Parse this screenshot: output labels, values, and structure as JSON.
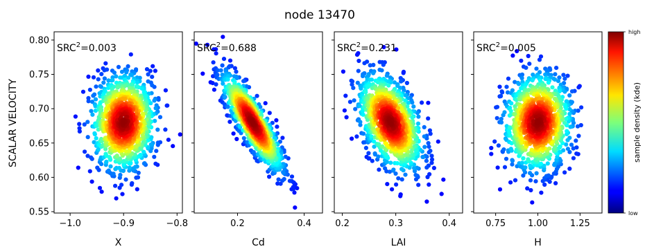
{
  "figure": {
    "title": "node 13470",
    "ylabel": "SCALAR VELOCITY",
    "colorbar_label": "sample density (kde)",
    "colorbar_high": "high",
    "colorbar_low": "low"
  },
  "chart_data": [
    {
      "type": "scatter",
      "xlabel": "X",
      "annotation": "SRC",
      "annotation_sup": "2",
      "annotation_value": "=0.003",
      "src2": 0.003,
      "xlim": [
        -1.03,
        -0.79
      ],
      "ylim": [
        0.548,
        0.812
      ],
      "xticks": [
        -1.0,
        -0.9,
        -0.8
      ],
      "xtick_labels": [
        "−1.0",
        "−0.9",
        "−0.8"
      ],
      "yticks": [
        0.55,
        0.6,
        0.65,
        0.7,
        0.75,
        0.8
      ],
      "ytick_labels": [
        "0.55",
        "0.60",
        "0.65",
        "0.70",
        "0.75",
        "0.80"
      ],
      "x_center": -0.9,
      "x_sd": 0.03,
      "y_center": 0.68,
      "y_sd": 0.035,
      "correlation": 0.05
    },
    {
      "type": "scatter",
      "xlabel": "Cd",
      "annotation": "SRC",
      "annotation_sup": "2",
      "annotation_value": "=0.688",
      "src2": 0.688,
      "xlim": [
        0.07,
        0.455
      ],
      "ylim": [
        0.548,
        0.812
      ],
      "xticks": [
        0.2,
        0.4
      ],
      "xtick_labels": [
        "0.2",
        "0.4"
      ],
      "x_center": 0.245,
      "x_sd": 0.045,
      "y_center": 0.68,
      "y_sd": 0.035,
      "correlation": -0.85
    },
    {
      "type": "scatter",
      "xlabel": "LAI",
      "annotation": "SRC",
      "annotation_sup": "2",
      "annotation_value": "=0.231",
      "src2": 0.231,
      "xlim": [
        0.185,
        0.425
      ],
      "ylim": [
        0.548,
        0.812
      ],
      "xticks": [
        0.2,
        0.3,
        0.4
      ],
      "xtick_labels": [
        "0.2",
        "0.3",
        "0.4"
      ],
      "x_center": 0.29,
      "x_sd": 0.03,
      "y_center": 0.68,
      "y_sd": 0.035,
      "correlation": -0.45
    },
    {
      "type": "scatter",
      "xlabel": "H",
      "annotation": "SRC",
      "annotation_sup": "2",
      "annotation_value": "=0.005",
      "src2": 0.005,
      "xlim": [
        0.62,
        1.38
      ],
      "ylim": [
        0.548,
        0.812
      ],
      "xticks": [
        0.75,
        1.0,
        1.25
      ],
      "xtick_labels": [
        "0.75",
        "1.00",
        "1.25"
      ],
      "x_center": 1.0,
      "x_sd": 0.1,
      "y_center": 0.68,
      "y_sd": 0.035,
      "correlation": 0.05
    }
  ]
}
